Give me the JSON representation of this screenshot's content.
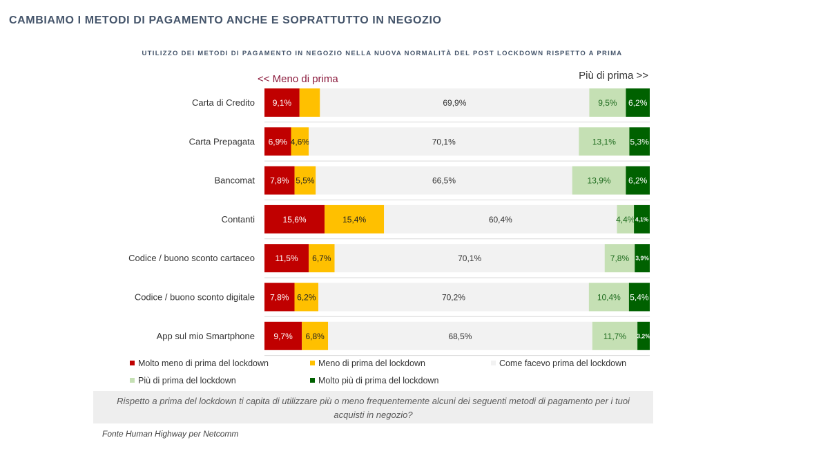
{
  "title": "CAMBIAMO I METODI DI PAGAMENTO ANCHE E SOPRATTUTTO IN NEGOZIO",
  "subtitle": "UTILIZZO DEI METODI DI PAGAMENTO IN NEGOZIO NELLA NUOVA NORMALITÀ DEL POST LOCKDOWN RISPETTO A PRIMA",
  "direction": {
    "left": "<< Meno di prima",
    "right": "Più di prima >>"
  },
  "question": "Rispetto a prima del lockdown ti capita di utilizzare più o meno frequentemente alcuni dei seguenti metodi di pagamento per i tuoi acquisti in negozio?",
  "source": "Fonte Human Highway per Netcomm",
  "colors": {
    "molto_meno": "#c00000",
    "meno": "#ffc000",
    "come_prima": "#f2f2f2",
    "piu": "#c5e0b4",
    "molto_piu": "#006100"
  },
  "chart_data": {
    "type": "bar",
    "orientation": "horizontal",
    "stacked": true,
    "percent_stacked": true,
    "categories": [
      "Carta di Credito",
      "Carta Prepagata",
      "Bancomat",
      "Contanti",
      "Codice / buono sconto cartaceo",
      "Codice / buono sconto digitale",
      "App sul mio Smartphone"
    ],
    "series": [
      {
        "name": "Molto meno di prima del lockdown",
        "color": "#c00000",
        "values": [
          9.1,
          6.9,
          7.8,
          15.6,
          11.5,
          7.8,
          9.7
        ],
        "labels": [
          "9,1%",
          "6,9%",
          "7,8%",
          "15,6%",
          "11,5%",
          "7,8%",
          "9,7%"
        ]
      },
      {
        "name": "Meno di prima del lockdown",
        "color": "#ffc000",
        "values": [
          5.3,
          4.6,
          5.5,
          15.4,
          6.7,
          6.2,
          6.8
        ],
        "labels": [
          "",
          "4,6%",
          "5,5%",
          "15,4%",
          "6,7%",
          "6,2%",
          "6,8%"
        ]
      },
      {
        "name": "Come facevo prima del lockdown",
        "color": "#f2f2f2",
        "values": [
          69.9,
          70.1,
          66.5,
          60.4,
          70.1,
          70.2,
          68.5
        ],
        "labels": [
          "69,9%",
          "70,1%",
          "66,5%",
          "60,4%",
          "70,1%",
          "70,2%",
          "68,5%"
        ]
      },
      {
        "name": "Più di prima del lockdown",
        "color": "#c5e0b4",
        "values": [
          9.5,
          13.1,
          13.9,
          4.4,
          7.8,
          10.4,
          11.7
        ],
        "labels": [
          "9,5%",
          "13,1%",
          "13,9%",
          "4,4%",
          "7,8%",
          "10,4%",
          "11,7%"
        ]
      },
      {
        "name": "Molto più di prima del lockdown",
        "color": "#006100",
        "values": [
          6.2,
          5.3,
          6.2,
          4.1,
          3.9,
          5.4,
          3.2
        ],
        "labels": [
          "6,2%",
          "5,3%",
          "6,2%",
          "4,1%",
          "3,9%",
          "5,4%",
          "3,2%"
        ]
      }
    ],
    "xlim": [
      0,
      100
    ],
    "legend_position": "bottom"
  }
}
